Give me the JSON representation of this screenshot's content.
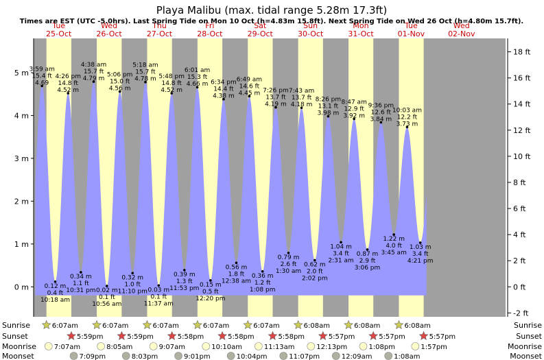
{
  "header": {
    "title": "Playa Malibu (max. tidal range 5.28m 17.3ft)",
    "subtitle": "Times are EST (UTC -5.0hrs). Last Spring Tide on Mon 10 Oct (h=4.83m 15.8ft). Next Spring Tide on Wed 26 Oct (h=4.80m 15.7ft)."
  },
  "days": [
    {
      "dow": "Tue",
      "date": "25-Oct"
    },
    {
      "dow": "Wed",
      "date": "26-Oct"
    },
    {
      "dow": "Thu",
      "date": "27-Oct"
    },
    {
      "dow": "Fri",
      "date": "28-Oct"
    },
    {
      "dow": "Sat",
      "date": "29-Oct"
    },
    {
      "dow": "Sun",
      "date": "30-Oct"
    },
    {
      "dow": "Mon",
      "date": "31-Oct"
    },
    {
      "dow": "Tue",
      "date": "01-Nov"
    },
    {
      "dow": "Wed",
      "date": "02-Nov"
    }
  ],
  "chart_data": {
    "type": "area",
    "left_axis": {
      "unit": "m",
      "ticks": [
        "0 m",
        "1 m",
        "2 m",
        "3 m",
        "4 m",
        "5 m"
      ],
      "range": [
        -0.7,
        5.8
      ]
    },
    "right_axis": {
      "unit": "ft",
      "ticks": [
        "-2 ft",
        "0 ft",
        "2 ft",
        "4 ft",
        "6 ft",
        "8 ft",
        "10 ft",
        "12 ft",
        "14 ft",
        "16 ft",
        "18 ft"
      ]
    },
    "x_range_hours": [
      0,
      225
    ],
    "series": [
      {
        "tides": [
          {
            "type": "high",
            "time": "3:59 am",
            "t": 3.98,
            "m": 4.69,
            "ft": "15.4 ft",
            "m_label": "4.69"
          },
          {
            "type": "low",
            "time": "10:18 am",
            "t": 10.3,
            "m": 0.12,
            "ft": "0.4 ft",
            "m_label": "0.12 m"
          },
          {
            "type": "high",
            "time": "4:26 pm",
            "t": 16.43,
            "m": 4.52,
            "ft": "14.8 ft",
            "m_label": "4.52 m"
          },
          {
            "type": "low",
            "time": "10:31 pm",
            "t": 22.52,
            "m": 0.34,
            "ft": "1.1 ft",
            "m_label": "0.34 m"
          },
          {
            "type": "high",
            "time": "4:38 am",
            "t": 28.63,
            "m": 4.79,
            "ft": "15.7 ft",
            "m_label": "4.79 m"
          },
          {
            "type": "low",
            "time": "10:56 am",
            "t": 34.93,
            "m": 0.02,
            "ft": "0.1 ft",
            "m_label": "0.02 m"
          },
          {
            "type": "high",
            "time": "5:06 pm",
            "t": 41.1,
            "m": 4.56,
            "ft": "15.0 ft",
            "m_label": "4.56 m"
          },
          {
            "type": "low",
            "time": "11:10 pm",
            "t": 47.17,
            "m": 0.32,
            "ft": "1.0 ft",
            "m_label": "0.32 m"
          },
          {
            "type": "high",
            "time": "5:18 am",
            "t": 53.3,
            "m": 4.78,
            "ft": "15.7 ft",
            "m_label": "4.78 m"
          },
          {
            "type": "low",
            "time": "11:37 am",
            "t": 59.62,
            "m": 0.03,
            "ft": "0.1 ft",
            "m_label": "0.03 m"
          },
          {
            "type": "high",
            "time": "5:48 pm",
            "t": 65.8,
            "m": 4.52,
            "ft": "14.8 ft",
            "m_label": "4.52 m"
          },
          {
            "type": "low",
            "time": "11:53 pm",
            "t": 71.88,
            "m": 0.39,
            "ft": "1.3 ft",
            "m_label": "0.39 m"
          },
          {
            "type": "high",
            "time": "6:01 am",
            "t": 78.02,
            "m": 4.66,
            "ft": "15.3 ft",
            "m_label": "4.66 m"
          },
          {
            "type": "low",
            "time": "12:20 pm",
            "t": 84.33,
            "m": 0.15,
            "ft": "0.5 ft",
            "m_label": "0.15 m"
          },
          {
            "type": "high",
            "time": "6:34 pm",
            "t": 90.57,
            "m": 4.38,
            "ft": "14.4 ft",
            "m_label": "4.38 m"
          },
          {
            "type": "low",
            "time": "12:38 am",
            "t": 96.63,
            "m": 0.56,
            "ft": "1.8 ft",
            "m_label": "0.56 m"
          },
          {
            "type": "high",
            "time": "6:49 am",
            "t": 102.82,
            "m": 4.45,
            "ft": "14.6 ft",
            "m_label": "4.45 m"
          },
          {
            "type": "low",
            "time": "1:08 pm",
            "t": 109.13,
            "m": 0.36,
            "ft": "1.2 ft",
            "m_label": "0.36 m"
          },
          {
            "type": "high",
            "time": "7:26 pm",
            "t": 115.43,
            "m": 4.19,
            "ft": "13.7 ft",
            "m_label": "4.19 m"
          },
          {
            "type": "low",
            "time": "1:30 am",
            "t": 121.5,
            "m": 0.79,
            "ft": "2.6 ft",
            "m_label": "0.79 m"
          },
          {
            "type": "high",
            "time": "7:43 am",
            "t": 127.72,
            "m": 4.18,
            "ft": "13.7 ft",
            "m_label": "4.18 m"
          },
          {
            "type": "low",
            "time": "2:02 pm",
            "t": 134.03,
            "m": 0.62,
            "ft": "2.0 ft",
            "m_label": "0.62 m"
          },
          {
            "type": "high",
            "time": "8:26 pm",
            "t": 140.43,
            "m": 3.98,
            "ft": "13.1 ft",
            "m_label": "3.98 m"
          },
          {
            "type": "low",
            "time": "2:31 am",
            "t": 146.52,
            "m": 1.04,
            "ft": "3.4 ft",
            "m_label": "1.04 m"
          },
          {
            "type": "high",
            "time": "8:47 am",
            "t": 152.78,
            "m": 3.92,
            "ft": "12.9 ft",
            "m_label": "3.92 m"
          },
          {
            "type": "low",
            "time": "3:06 pm",
            "t": 159.1,
            "m": 0.87,
            "ft": "2.9 ft",
            "m_label": "0.87 m"
          },
          {
            "type": "high",
            "time": "9:36 pm",
            "t": 165.6,
            "m": 3.84,
            "ft": "12.6 ft",
            "m_label": "3.84 m"
          },
          {
            "type": "low",
            "time": "3:45 am",
            "t": 171.75,
            "m": 1.22,
            "ft": "4.0 ft",
            "m_label": "1.22 m"
          },
          {
            "type": "high",
            "time": "10:03 am",
            "t": 178.05,
            "m": 3.73,
            "ft": "12.2 ft",
            "m_label": "3.73 m"
          },
          {
            "type": "low",
            "time": "4:21 pm",
            "t": 184.35,
            "m": 1.03,
            "ft": "3.4 ft",
            "m_label": "1.03 m"
          }
        ]
      }
    ],
    "grid": false,
    "colors": {
      "night": "#a0a0a0",
      "day": "#ffffc0",
      "tide_fill": "#9999ff"
    }
  },
  "sun_moon": {
    "row_labels": {
      "sunrise": "Sunrise",
      "sunset": "Sunset",
      "moonrise": "Moonrise",
      "moonset": "Moonset"
    },
    "sunrise": [
      {
        "t": 6.12,
        "label": "6:07am"
      },
      {
        "t": 30.12,
        "label": "6:07am"
      },
      {
        "t": 54.12,
        "label": "6:07am"
      },
      {
        "t": 78.12,
        "label": "6:07am"
      },
      {
        "t": 102.12,
        "label": "6:07am"
      },
      {
        "t": 126.13,
        "label": "6:08am"
      },
      {
        "t": 150.13,
        "label": "6:08am"
      },
      {
        "t": 174.13,
        "label": "6:08am"
      }
    ],
    "sunset": [
      {
        "t": 17.98,
        "label": "5:59pm"
      },
      {
        "t": 41.98,
        "label": "5:59pm"
      },
      {
        "t": 65.97,
        "label": "5:58pm"
      },
      {
        "t": 89.97,
        "label": "5:58pm"
      },
      {
        "t": 113.97,
        "label": "5:58pm"
      },
      {
        "t": 137.95,
        "label": "5:57pm"
      },
      {
        "t": 161.95,
        "label": "5:57pm"
      },
      {
        "t": 185.95,
        "label": "5:57pm"
      }
    ],
    "moonrise": [
      {
        "t": 7.12,
        "label": "7:07am"
      },
      {
        "t": 32.08,
        "label": "8:05am"
      },
      {
        "t": 57.12,
        "label": "9:07am"
      },
      {
        "t": 82.17,
        "label": "10:10am"
      },
      {
        "t": 107.22,
        "label": "11:13am"
      },
      {
        "t": 132.22,
        "label": "12:13pm"
      },
      {
        "t": 157.13,
        "label": "1:08pm"
      },
      {
        "t": 181.95,
        "label": "1:57pm"
      }
    ],
    "moonset": [
      {
        "t": 19.15,
        "label": "7:09pm"
      },
      {
        "t": 44.05,
        "label": "8:03pm"
      },
      {
        "t": 69.02,
        "label": "9:01pm"
      },
      {
        "t": 94.07,
        "label": "10:04pm"
      },
      {
        "t": 119.12,
        "label": "11:07pm"
      },
      {
        "t": 144.15,
        "label": "12:09am"
      },
      {
        "t": 169.13,
        "label": "1:08am"
      }
    ]
  }
}
